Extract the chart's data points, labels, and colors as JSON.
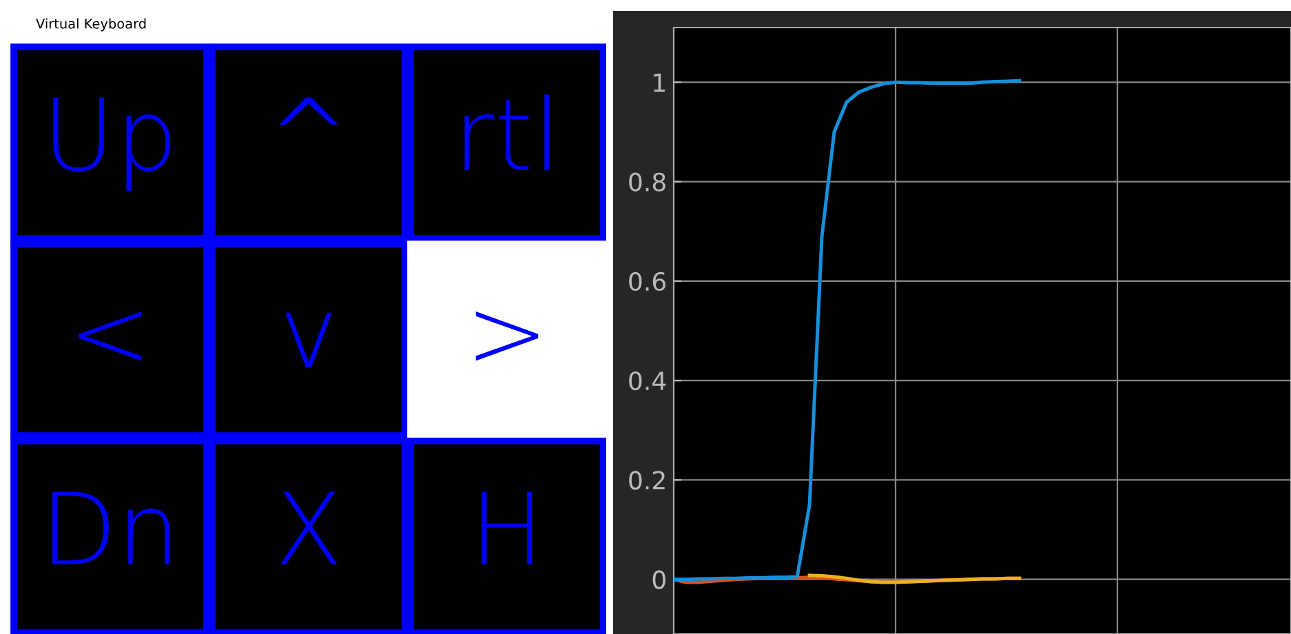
{
  "chart_data": [
    {
      "type": "other",
      "title": "Virtual Keyboard",
      "annotations": [
        "Up",
        "^",
        "rtl",
        "<",
        "v",
        ">",
        "Dn",
        "X",
        "H"
      ]
    },
    {
      "type": "line",
      "categories": [
        null,
        null,
        null,
        null,
        null,
        null,
        null,
        null,
        null,
        null,
        null,
        null,
        null,
        null,
        null,
        null,
        null,
        null,
        null,
        null,
        null,
        null,
        null,
        null,
        null,
        null,
        null,
        null,
        null,
        null,
        null,
        null,
        null,
        null,
        null,
        null,
        null,
        null,
        null,
        null,
        null,
        null,
        null,
        null,
        null,
        null,
        null,
        null,
        null,
        null,
        null
      ],
      "ylim": [
        -0.11,
        1.11
      ],
      "yticks": [
        0,
        0.2,
        0.4,
        0.6,
        0.8,
        1
      ],
      "grid": "y",
      "tick_labels": "y",
      "series": [
        {
          "color": "#d95319",
          "values": [
            0,
            -0.006,
            -0.006,
            -0.004,
            -0.002,
            0,
            0.001,
            0.002,
            0.002,
            0.003,
            0.003,
            0.004,
            0.003,
            0.001,
            -0.001,
            -0.003,
            -0.004,
            -0.005,
            -0.005,
            -0.005,
            -0.004,
            -0.003,
            -0.002,
            -0.001,
            0,
            0.001,
            0.001,
            0.002,
            0.002,
            null,
            null,
            null,
            null,
            null,
            null,
            null,
            null,
            null,
            null,
            null,
            null,
            null,
            null,
            null,
            null,
            null,
            null,
            null,
            null,
            null,
            null
          ]
        },
        {
          "color": "#edb120",
          "values": [
            null,
            null,
            null,
            null,
            null,
            null,
            null,
            null,
            null,
            null,
            null,
            0.008,
            0.007,
            0.005,
            0.002,
            -0.002,
            -0.005,
            -0.006,
            -0.006,
            -0.005,
            -0.004,
            -0.003,
            -0.002,
            -0.001,
            0,
            0.001,
            0.001,
            0.002,
            0.002,
            null,
            null,
            null,
            null,
            null,
            null,
            null,
            null,
            null,
            null,
            null,
            null,
            null,
            null,
            null,
            null,
            null,
            null,
            null,
            null,
            null,
            null
          ]
        },
        {
          "color": "#1590db",
          "values": [
            0,
            0,
            0.001,
            0.001,
            0.002,
            0.002,
            0.003,
            0.003,
            0.004,
            0.004,
            0.005,
            0.15,
            0.69,
            0.9,
            0.96,
            0.98,
            0.99,
            0.997,
            1,
            0.999,
            0.999,
            0.998,
            0.998,
            0.998,
            0.998,
            1,
            1.001,
            1.002,
            1.003,
            null,
            null,
            null,
            null,
            null,
            null,
            null,
            null,
            null,
            null,
            null,
            null,
            null,
            null,
            null,
            null,
            null,
            null,
            null,
            null,
            null,
            null
          ]
        }
      ]
    }
  ]
}
